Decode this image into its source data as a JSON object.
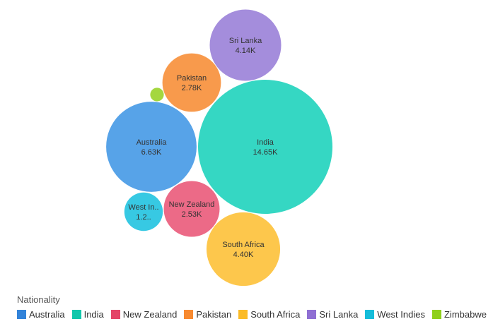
{
  "chart_data": {
    "type": "bubble",
    "unit_suffix": "K",
    "values": [
      {
        "category": "India",
        "value": 14.65,
        "label_name": "India",
        "label_value": "14.65K",
        "color": "#35d7c3"
      },
      {
        "category": "Australia",
        "value": 6.63,
        "label_name": "Australia",
        "label_value": "6.63K",
        "color": "#57a3e8"
      },
      {
        "category": "South Africa",
        "value": 4.4,
        "label_name": "South Africa",
        "label_value": "4.40K",
        "color": "#fdc74c"
      },
      {
        "category": "Sri Lanka",
        "value": 4.14,
        "label_name": "Sri Lanka",
        "label_value": "4.14K",
        "color": "#a48ddc"
      },
      {
        "category": "Pakistan",
        "value": 2.78,
        "label_name": "Pakistan",
        "label_value": "2.78K",
        "color": "#f89a4c"
      },
      {
        "category": "New Zealand",
        "value": 2.53,
        "label_name": "New Zealand",
        "label_value": "2.53K",
        "color": "#ec6a87"
      },
      {
        "category": "West Indies",
        "value": 1.2,
        "label_name": "West In..",
        "label_value": "1.2..",
        "color": "#37c9e3"
      },
      {
        "category": "Zimbabwe",
        "value": 0.15,
        "label_name": "",
        "label_value": "",
        "color": "#a4d73f"
      }
    ],
    "legend": {
      "title": "Nationality",
      "position": "bottom-left",
      "items": [
        {
          "label": "Australia",
          "color": "#3283d9"
        },
        {
          "label": "India",
          "color": "#11c7ab"
        },
        {
          "label": "New Zealand",
          "color": "#e44568"
        },
        {
          "label": "Pakistan",
          "color": "#f88a30"
        },
        {
          "label": "South Africa",
          "color": "#fbbb26"
        },
        {
          "label": "Sri Lanka",
          "color": "#8f6fd3"
        },
        {
          "label": "West Indies",
          "color": "#15bdda"
        },
        {
          "label": "Zimbabwe",
          "color": "#8fd01c"
        }
      ]
    }
  }
}
